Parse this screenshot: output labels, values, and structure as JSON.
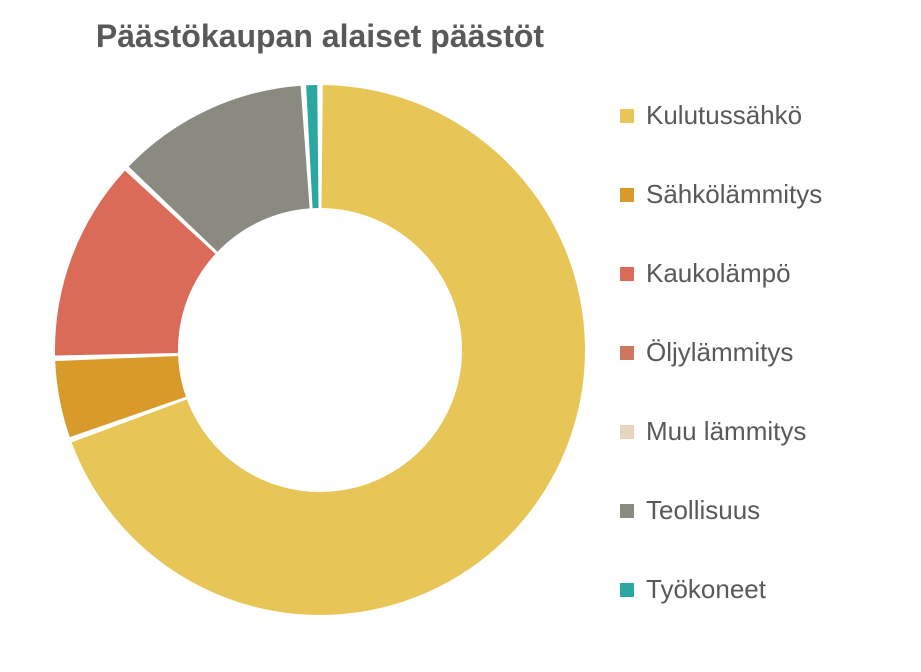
{
  "chart": {
    "type": "donut",
    "title": "Päästökaupan alaiset päästöt",
    "title_fontsize": 32,
    "title_color": "#595959",
    "background_color": "#ffffff",
    "outer_radius": 265,
    "inner_radius": 142,
    "start_angle_deg": -90,
    "gap_deg": 1.2,
    "slices": [
      {
        "label": "Kulutussähkö",
        "value": 69.5,
        "color": "#e7c657"
      },
      {
        "label": "Sähkölämmitys",
        "value": 5.0,
        "color": "#d89a2a"
      },
      {
        "label": "Kaukolämpö",
        "value": 12.5,
        "color": "#d96b58"
      },
      {
        "label": "Öljylämmitys",
        "value": 0.0,
        "color": "#ce7760"
      },
      {
        "label": "Muu lämmitys",
        "value": 0.0,
        "color": "#e7d5bd"
      },
      {
        "label": "Teollisuus",
        "value": 12.0,
        "color": "#8a8a80"
      },
      {
        "label": "Työkoneet",
        "value": 1.0,
        "color": "#2aa7a0"
      }
    ],
    "legend": {
      "marker_size": 14,
      "fontsize": 26,
      "item_gap": 48,
      "text_color": "#595959"
    }
  }
}
